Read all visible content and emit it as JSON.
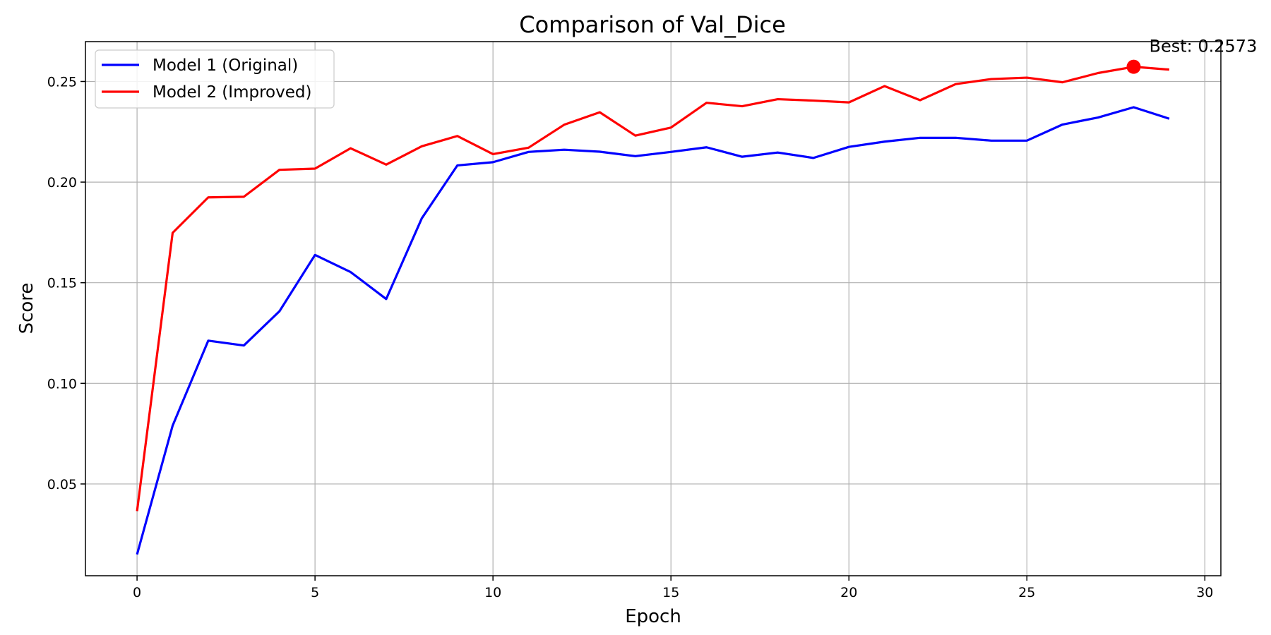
{
  "chart_data": {
    "type": "line",
    "title": "Comparison of Val_Dice",
    "xlabel": "Epoch",
    "ylabel": "Score",
    "xlim": [
      -1.45,
      30.45
    ],
    "ylim": [
      0.0044,
      0.2698
    ],
    "xticks": [
      0,
      5,
      10,
      15,
      20,
      25,
      30
    ],
    "xtick_labels": [
      "0",
      "5",
      "10",
      "15",
      "20",
      "25",
      "30"
    ],
    "yticks": [
      0.05,
      0.1,
      0.15,
      0.2,
      0.25
    ],
    "ytick_labels": [
      "0.05",
      "0.10",
      "0.15",
      "0.20",
      "0.25"
    ],
    "grid": true,
    "legend_position": "top-left",
    "x": [
      0,
      1,
      2,
      3,
      4,
      5,
      6,
      7,
      8,
      9,
      10,
      11,
      12,
      13,
      14,
      15,
      16,
      17,
      18,
      19,
      20,
      21,
      22,
      23,
      24,
      25,
      26,
      27,
      28,
      29
    ],
    "series": [
      {
        "name": "Model 1 (Original)",
        "color": "#0000ff",
        "values": [
          0.015,
          0.079,
          0.1212,
          0.1188,
          0.1358,
          0.1638,
          0.1553,
          0.1419,
          0.182,
          0.2083,
          0.2099,
          0.215,
          0.2161,
          0.2151,
          0.2129,
          0.215,
          0.2173,
          0.2126,
          0.2147,
          0.212,
          0.2175,
          0.2201,
          0.222,
          0.222,
          0.2206,
          0.2206,
          0.2286,
          0.2321,
          0.2372,
          0.2315
        ]
      },
      {
        "name": "Model 2 (Improved)",
        "color": "#ff0000",
        "values": [
          0.0365,
          0.1748,
          0.1924,
          0.1927,
          0.2061,
          0.2067,
          0.2168,
          0.2087,
          0.2178,
          0.2229,
          0.2139,
          0.2171,
          0.2285,
          0.2347,
          0.2231,
          0.2271,
          0.2394,
          0.2377,
          0.2412,
          0.2405,
          0.2396,
          0.2477,
          0.2407,
          0.2487,
          0.2512,
          0.2519,
          0.2496,
          0.2542,
          0.2573,
          0.2559
        ]
      }
    ],
    "annotation": {
      "text": "Best: 0.2573",
      "x": 28,
      "y": 0.2573,
      "series_index": 1,
      "marker_color": "#ff0000"
    }
  }
}
